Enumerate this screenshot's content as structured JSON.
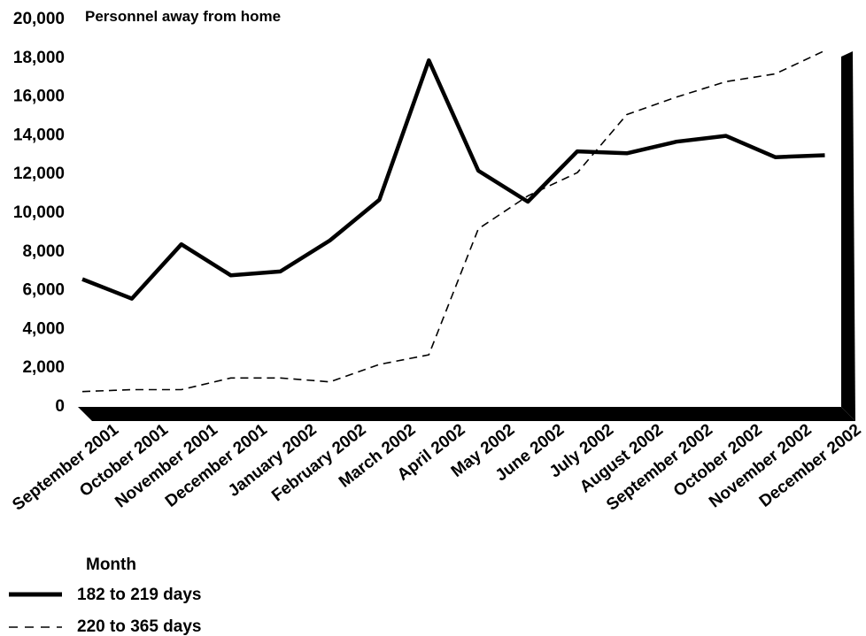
{
  "chart_data": {
    "type": "line",
    "title": "Personnel away from home",
    "xlabel": "Month",
    "ylabel": "",
    "ylim": [
      0,
      20000
    ],
    "y_ticks": [
      "20,000",
      "18,000",
      "16,000",
      "14,000",
      "12,000",
      "10,000",
      "8,000",
      "6,000",
      "4,000",
      "2,000",
      "0"
    ],
    "grid": false,
    "legend_position": "bottom-left",
    "categories": [
      "September 2001",
      "October 2001",
      "November 2001",
      "December 2001",
      "January 2002",
      "February 2002",
      "March 2002",
      "April 2002",
      "May 2002",
      "June 2002",
      "July 2002",
      "August 2002",
      "September 2002",
      "October 2002",
      "November 2002",
      "December 2002"
    ],
    "series": [
      {
        "name": "182 to 219 days",
        "style": "solid",
        "color": "#000000",
        "values": [
          6500,
          5500,
          8300,
          6700,
          6900,
          8500,
          10600,
          17800,
          12100,
          10500,
          13100,
          13000,
          13600,
          13900,
          12800,
          12900
        ]
      },
      {
        "name": "220 to 365 days",
        "style": "dashed",
        "color": "#000000",
        "values": [
          700,
          800,
          800,
          1400,
          1400,
          1200,
          2100,
          2600,
          9100,
          10800,
          12000,
          15000,
          15900,
          16700,
          17100,
          18300
        ]
      }
    ]
  }
}
